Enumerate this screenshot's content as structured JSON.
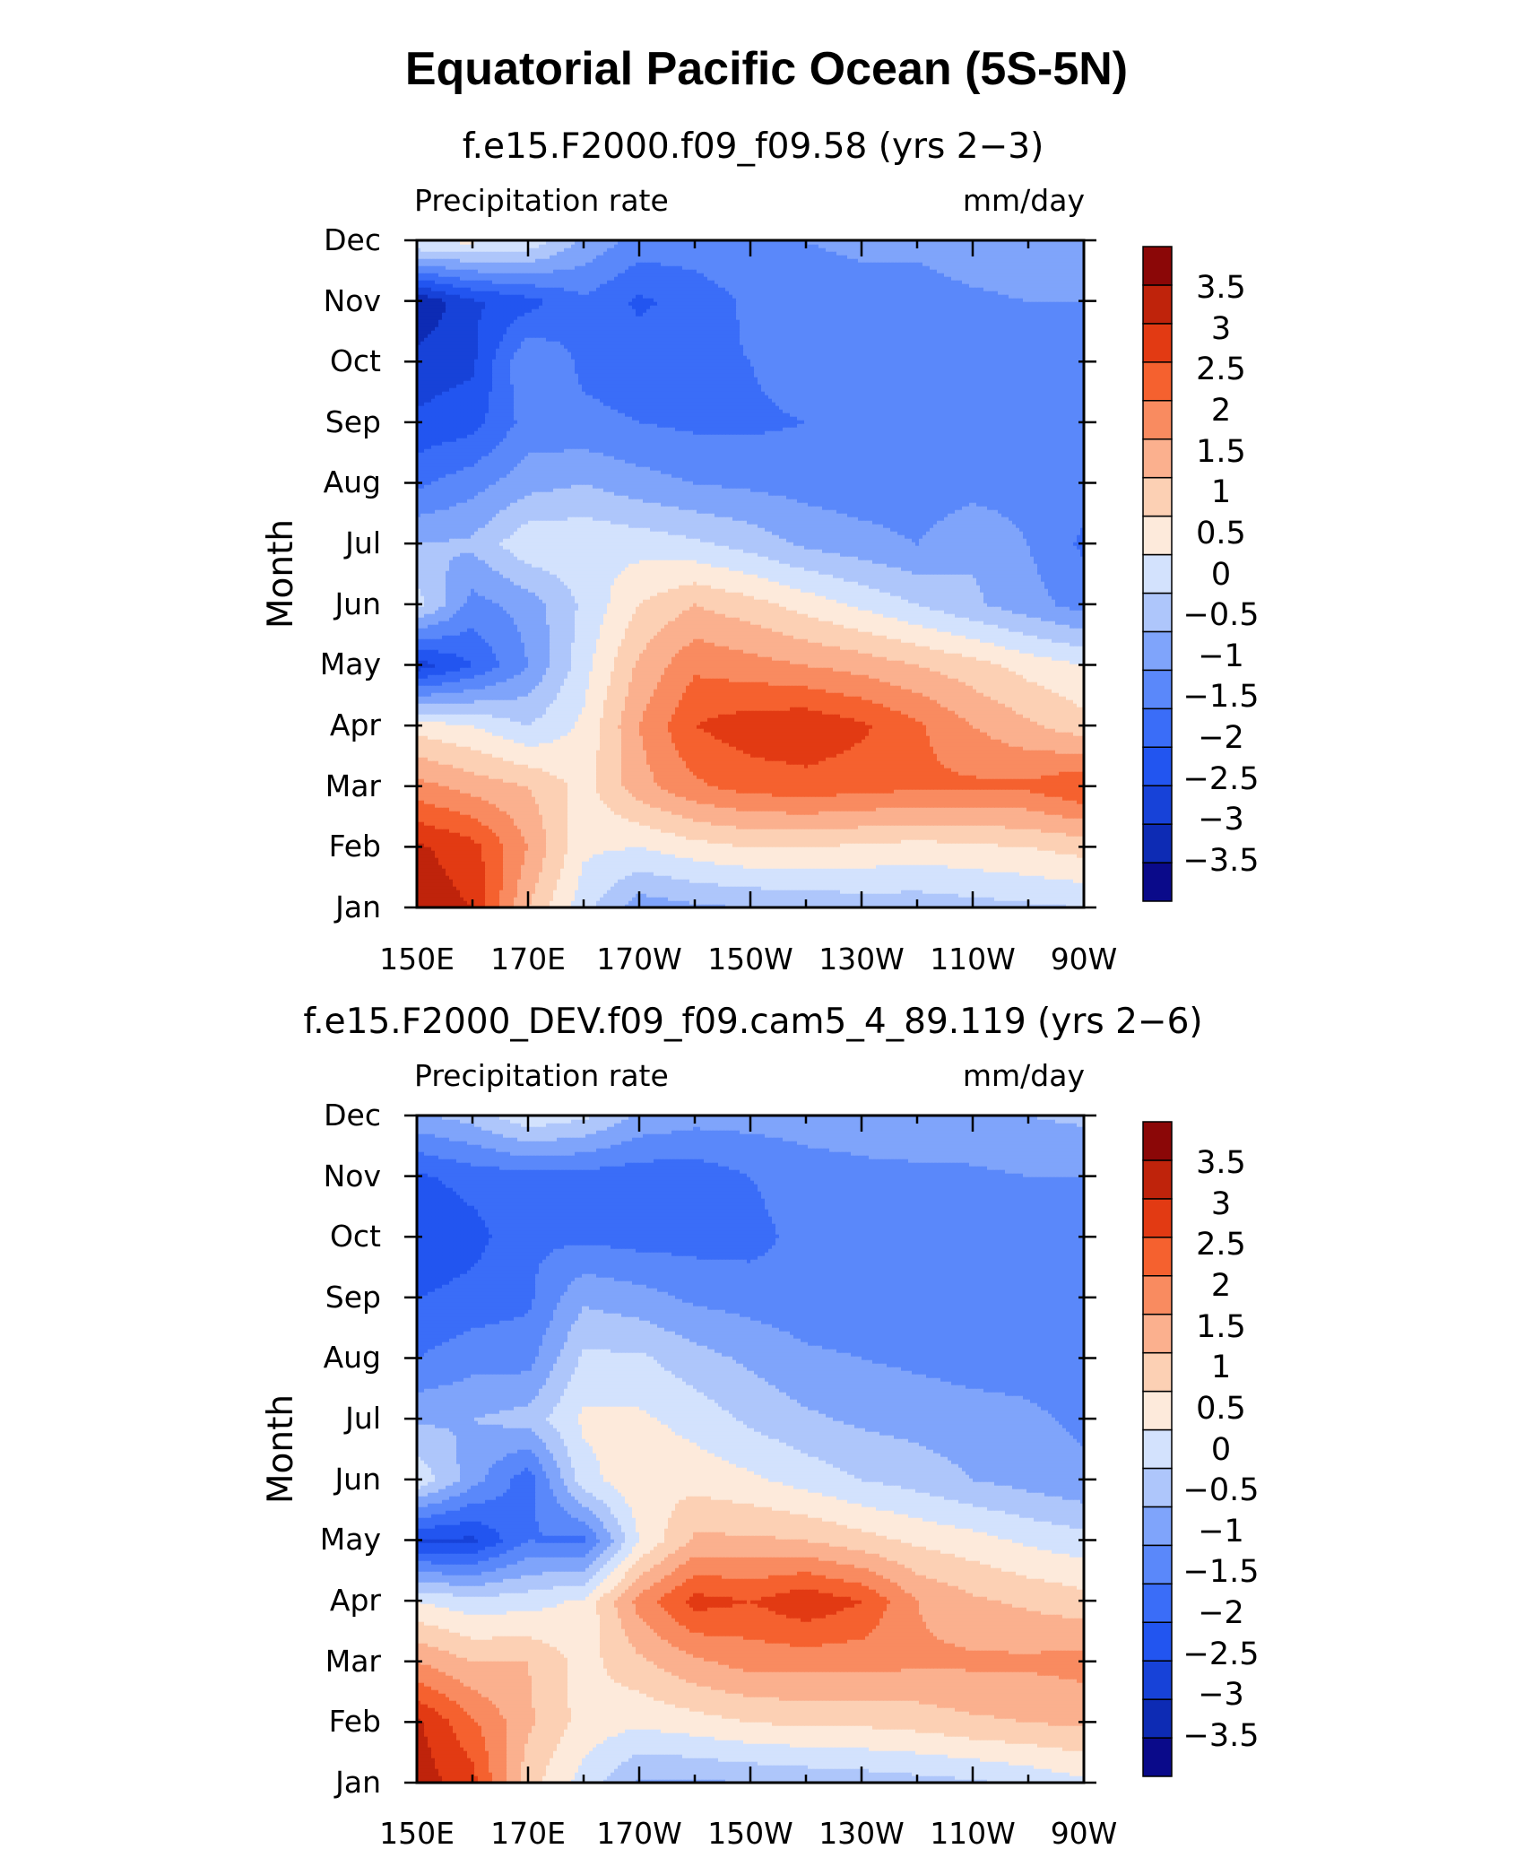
{
  "figure_title": "Equatorial Pacific Ocean (5S-5N)",
  "colors": {
    "levels": [
      "#0a0a8a",
      "#0d2bb4",
      "#1742d8",
      "#2255f0",
      "#3a6df8",
      "#5a88fa",
      "#7fa4fb",
      "#aec6fb",
      "#d3e2fd",
      "#fdeadb",
      "#fcd0b4",
      "#fbb08e",
      "#f98b60",
      "#f5612f",
      "#e23a13",
      "#bf230b",
      "#8b0707"
    ]
  },
  "chart_data": [
    {
      "type": "heatmap",
      "title": "f.e15.F2000.f09_f09.58 (yrs 2−3)",
      "left_label": "Precipitation rate",
      "right_label": "mm/day",
      "xlabel": "",
      "ylabel": "Month",
      "x_ticks": [
        "150E",
        "170E",
        "170W",
        "150W",
        "130W",
        "110W",
        "90W"
      ],
      "x_range": [
        150,
        270
      ],
      "y_ticks": [
        "Jan",
        "Feb",
        "Mar",
        "Apr",
        "May",
        "Jun",
        "Jul",
        "Aug",
        "Sep",
        "Oct",
        "Nov",
        "Dec"
      ],
      "colorbar_labels": [
        "3.5",
        "3",
        "2.5",
        "2",
        "1.5",
        "1",
        "0.5",
        "0",
        "−0.5",
        "−1",
        "−1.5",
        "−2",
        "−2.5",
        "−3",
        "−3.5"
      ],
      "lon": [
        150,
        160,
        170,
        180,
        190,
        200,
        210,
        220,
        230,
        240,
        250,
        260,
        270
      ],
      "months": [
        "Jan",
        "Feb",
        "Mar",
        "Apr",
        "May",
        "Jun",
        "Jul",
        "Aug",
        "Sep",
        "Oct",
        "Nov",
        "Dec"
      ],
      "values": [
        [
          3.8,
          3.5,
          1.5,
          0.2,
          -0.8,
          -0.6,
          -0.5,
          -0.4,
          -0.3,
          -0.3,
          -0.2,
          -0.1,
          0.0
        ],
        [
          3.6,
          3.2,
          2.0,
          0.6,
          0.5,
          0.8,
          1.0,
          1.0,
          0.9,
          0.8,
          0.9,
          1.0,
          1.2
        ],
        [
          2.2,
          1.8,
          1.5,
          0.8,
          1.8,
          2.4,
          2.7,
          2.8,
          2.7,
          2.6,
          2.6,
          2.6,
          3.0
        ],
        [
          0.8,
          0.5,
          0.0,
          0.6,
          2.0,
          3.0,
          3.3,
          3.4,
          3.1,
          2.6,
          2.0,
          1.6,
          1.2
        ],
        [
          -2.8,
          -2.0,
          -1.0,
          0.3,
          1.6,
          2.4,
          2.2,
          2.0,
          1.8,
          1.5,
          1.2,
          0.8,
          0.5
        ],
        [
          0.2,
          -1.2,
          -0.8,
          0.1,
          1.0,
          1.5,
          1.2,
          0.8,
          0.4,
          0.0,
          -0.4,
          -0.8,
          -1.2
        ],
        [
          -0.5,
          -0.4,
          0.4,
          0.4,
          0.3,
          0.1,
          -0.2,
          -0.6,
          -0.8,
          -1.0,
          -0.6,
          -1.0,
          -1.6
        ],
        [
          -1.6,
          -1.2,
          -0.7,
          -0.5,
          -0.8,
          -1.0,
          -1.1,
          -1.2,
          -1.3,
          -1.3,
          -1.2,
          -1.2,
          -1.3
        ],
        [
          -2.4,
          -2.2,
          -1.3,
          -1.4,
          -1.5,
          -1.6,
          -1.6,
          -1.5,
          -1.2,
          -1.2,
          -1.2,
          -1.2,
          -1.3
        ],
        [
          -2.8,
          -2.6,
          -1.0,
          -1.6,
          -1.7,
          -1.6,
          -1.5,
          -1.2,
          -1.2,
          -1.2,
          -1.2,
          -1.2,
          -1.5
        ],
        [
          -3.5,
          -2.6,
          -2.2,
          -1.6,
          -2.1,
          -1.8,
          -1.4,
          -1.2,
          -1.2,
          -1.2,
          -1.1,
          -1.0,
          -1.0
        ],
        [
          0.6,
          0.6,
          0.4,
          -0.6,
          -1.2,
          -1.2,
          -1.1,
          -1.0,
          -0.9,
          -0.9,
          -0.7,
          -0.6,
          -0.6
        ]
      ]
    },
    {
      "type": "heatmap",
      "title": "f.e15.F2000_DEV.f09_f09.cam5_4_89.119 (yrs 2−6)",
      "left_label": "Precipitation rate",
      "right_label": "mm/day",
      "xlabel": "",
      "ylabel": "Month",
      "x_ticks": [
        "150E",
        "170E",
        "170W",
        "150W",
        "130W",
        "110W",
        "90W"
      ],
      "x_range": [
        150,
        270
      ],
      "y_ticks": [
        "Jan",
        "Feb",
        "Mar",
        "Apr",
        "May",
        "Jun",
        "Jul",
        "Aug",
        "Sep",
        "Oct",
        "Nov",
        "Dec"
      ],
      "colorbar_labels": [
        "3.5",
        "3",
        "2.5",
        "2",
        "1.5",
        "1",
        "0.5",
        "0",
        "−0.5",
        "−1",
        "−1.5",
        "−2",
        "−2.5",
        "−3",
        "−3.5"
      ],
      "lon": [
        150,
        160,
        170,
        180,
        190,
        200,
        210,
        220,
        230,
        240,
        250,
        260,
        270
      ],
      "months": [
        "Jan",
        "Feb",
        "Mar",
        "Apr",
        "May",
        "Jun",
        "Jul",
        "Aug",
        "Sep",
        "Oct",
        "Nov",
        "Dec"
      ],
      "values": [
        [
          3.8,
          3.2,
          1.2,
          0.3,
          -0.6,
          -0.6,
          -0.5,
          -0.4,
          -0.3,
          -0.2,
          -0.1,
          0.1,
          0.4
        ],
        [
          3.6,
          2.6,
          1.6,
          0.8,
          0.6,
          0.8,
          1.0,
          1.1,
          1.1,
          1.2,
          1.4,
          1.5,
          1.6
        ],
        [
          2.0,
          1.5,
          1.5,
          0.8,
          1.4,
          1.9,
          2.2,
          2.2,
          2.2,
          2.1,
          2.1,
          2.1,
          2.2
        ],
        [
          0.5,
          0.2,
          0.3,
          0.6,
          2.2,
          3.2,
          3.0,
          3.4,
          3.0,
          2.0,
          1.6,
          1.4,
          1.2
        ],
        [
          -2.6,
          -2.6,
          -1.5,
          -1.6,
          0.5,
          1.6,
          1.6,
          1.5,
          1.2,
          0.9,
          0.7,
          0.4,
          0.2
        ],
        [
          0.4,
          -0.8,
          -1.8,
          0.3,
          0.9,
          0.8,
          0.6,
          0.3,
          0.0,
          -0.2,
          -0.5,
          -0.7,
          -0.9
        ],
        [
          -0.6,
          -0.5,
          -0.3,
          0.6,
          0.6,
          0.3,
          -0.1,
          -0.4,
          -0.6,
          -0.7,
          -0.8,
          -0.9,
          -1.1
        ],
        [
          -1.5,
          -1.2,
          -1.2,
          0.1,
          0.1,
          -0.3,
          -0.6,
          -0.9,
          -1.0,
          -1.1,
          -1.2,
          -1.2,
          -1.3
        ],
        [
          -2.0,
          -1.8,
          -1.6,
          -0.6,
          -0.8,
          -1.1,
          -1.2,
          -1.3,
          -1.3,
          -1.3,
          -1.3,
          -1.3,
          -1.4
        ],
        [
          -2.5,
          -2.2,
          -1.6,
          -1.6,
          -1.7,
          -1.7,
          -1.7,
          -1.3,
          -1.2,
          -1.2,
          -1.2,
          -1.2,
          -1.3
        ],
        [
          -2.1,
          -1.8,
          -1.7,
          -1.7,
          -1.8,
          -1.8,
          -1.5,
          -1.2,
          -1.1,
          -1.1,
          -1.1,
          -1.0,
          -1.0
        ],
        [
          -0.6,
          -0.3,
          0.4,
          0.1,
          -0.6,
          -0.8,
          -0.8,
          -0.8,
          -0.8,
          -0.7,
          -0.6,
          -0.5,
          -0.4
        ]
      ]
    }
  ]
}
